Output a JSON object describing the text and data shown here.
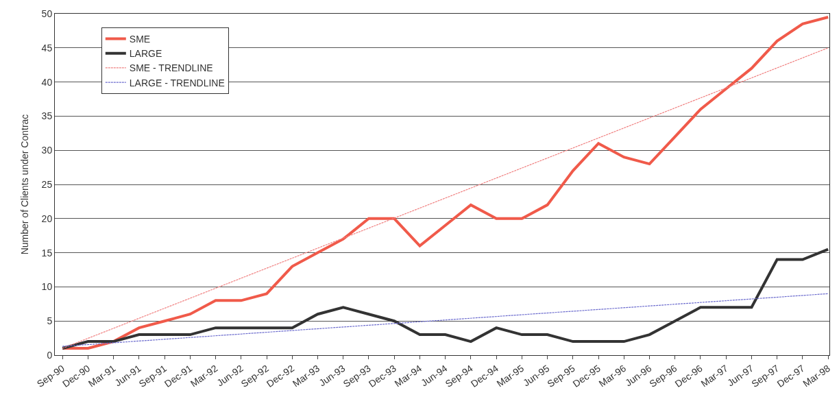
{
  "chart_data": {
    "type": "line",
    "ylabel": "Number of Clients under Contrac",
    "categories": [
      "Sep-90",
      "Dec-90",
      "Mar-91",
      "Jun-91",
      "Sep-91",
      "Dec-91",
      "Mar-92",
      "Jun-92",
      "Sep-92",
      "Dec-92",
      "Mar-93",
      "Jun-93",
      "Sep-93",
      "Dec-93",
      "Mar-94",
      "Jun-94",
      "Sep-94",
      "Dec-94",
      "Mar-95",
      "Jun-95",
      "Sep-95",
      "Dec-95",
      "Mar-96",
      "Jun-96",
      "Sep-96",
      "Dec-96",
      "Mar-97",
      "Jun-97",
      "Sep-97",
      "Dec-97",
      "Mar-98"
    ],
    "series": [
      {
        "name": "SME",
        "color": "#f05a4a",
        "line_style": "solid",
        "values": [
          1,
          1,
          2,
          4,
          5,
          6,
          8,
          8,
          9,
          13,
          15,
          17,
          20,
          20,
          16,
          19,
          22,
          20,
          20,
          22,
          27,
          31,
          29,
          28,
          32,
          36,
          39,
          42,
          46,
          48.5,
          49.5
        ]
      },
      {
        "name": "LARGE",
        "color": "#333333",
        "line_style": "solid",
        "values": [
          1,
          2,
          2,
          3,
          3,
          3,
          4,
          4,
          4,
          4,
          6,
          7,
          6,
          5,
          3,
          3,
          2,
          4,
          3,
          3,
          2,
          2,
          2,
          3,
          5,
          7,
          7,
          7,
          14,
          14,
          15.5
        ]
      },
      {
        "name": "SME - TRENDLINE",
        "color": "#f08080",
        "line_style": "dotted",
        "x": [
          "Sep-90",
          "Mar-98"
        ],
        "values": [
          1,
          45
        ]
      },
      {
        "name": "LARGE - TRENDLINE",
        "color": "#6a6acd",
        "line_style": "dotted",
        "x": [
          "Sep-90",
          "Mar-98"
        ],
        "values": [
          1.3,
          9
        ]
      }
    ],
    "ylim": [
      0,
      50
    ],
    "yticks": [
      0,
      5,
      10,
      15,
      20,
      25,
      30,
      35,
      40,
      45,
      50
    ],
    "grid": "y",
    "legend": "top left",
    "marker": "none"
  }
}
